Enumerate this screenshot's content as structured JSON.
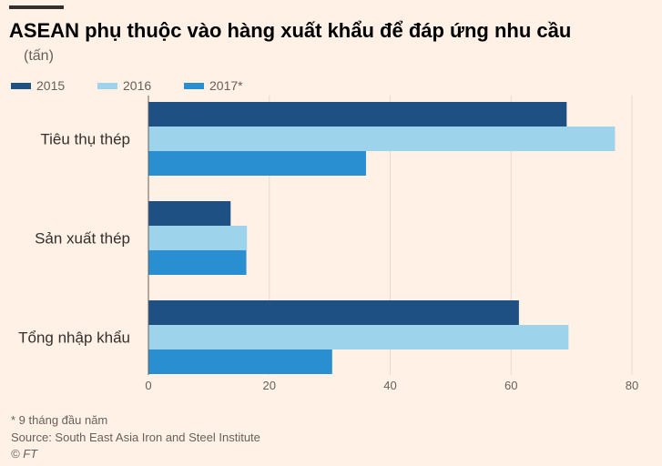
{
  "header": {
    "title": "ASEAN phụ thuộc vào hàng xuất khẩu để đáp ứng nhu cầu",
    "subtitle": "(tấn)"
  },
  "legend": [
    {
      "label": "2015",
      "color": "#1F5084"
    },
    {
      "label": "2016",
      "color": "#9DD4EC"
    },
    {
      "label": "2017*",
      "color": "#2A8FD0"
    }
  ],
  "chart_data": {
    "type": "bar",
    "orientation": "horizontal",
    "categories": [
      "Tiêu thụ thép",
      "Sản xuất thép",
      "Tổng nhập khẩu"
    ],
    "series": [
      {
        "name": "2015",
        "color": "#1F5084",
        "values": [
          69.2,
          13.6,
          61.3
        ]
      },
      {
        "name": "2016",
        "color": "#9DD4EC",
        "values": [
          77.2,
          16.3,
          69.5
        ]
      },
      {
        "name": "2017*",
        "color": "#2A8FD0",
        "values": [
          36.0,
          16.2,
          30.4
        ]
      }
    ],
    "xlim": [
      0,
      80
    ],
    "xticks": [
      0,
      20,
      40,
      60,
      80
    ],
    "grid": true,
    "legend_position": "top-left"
  },
  "footer": {
    "footnote": "* 9 tháng đầu năm",
    "source": "Source: South East Asia Iron and Steel Institute",
    "credit": "© FT"
  }
}
